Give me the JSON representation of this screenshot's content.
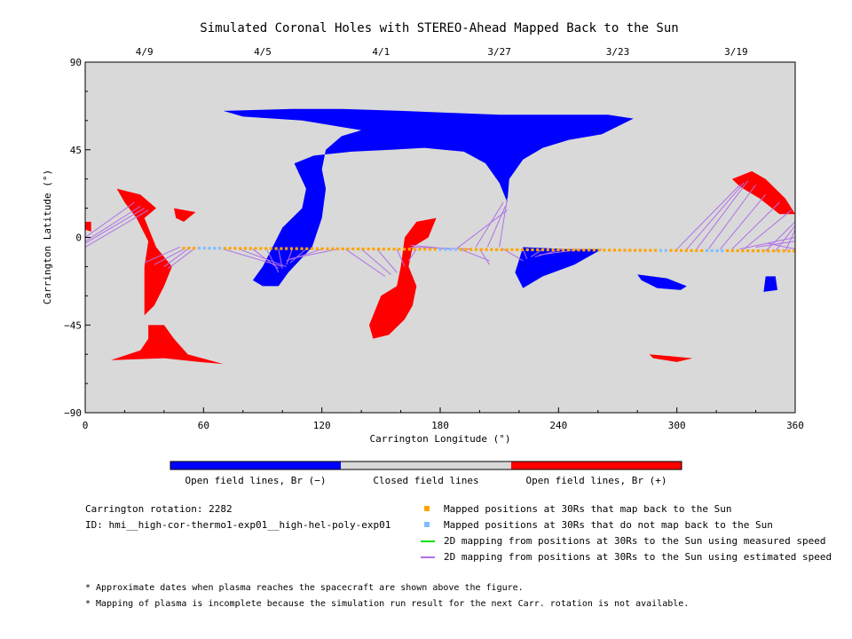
{
  "chart_data": {
    "type": "scatter",
    "title": "Simulated Coronal Holes with STEREO-Ahead Mapped Back to the Sun",
    "xlabel": "Carrington Longitude (°)",
    "ylabel": "Carrington Latitude (°)",
    "xlim": [
      0,
      360
    ],
    "ylim": [
      -90,
      90
    ],
    "xticks": [
      0,
      60,
      120,
      180,
      240,
      300,
      360
    ],
    "yticks": [
      90,
      45,
      0,
      -45,
      -90
    ],
    "top_axis_dates": [
      {
        "label": "4/9",
        "lon": 30
      },
      {
        "label": "4/5",
        "lon": 90
      },
      {
        "label": "4/1",
        "lon": 150
      },
      {
        "label": "3/27",
        "lon": 210
      },
      {
        "label": "3/23",
        "lon": 270
      },
      {
        "label": "3/19",
        "lon": 330
      }
    ],
    "background_color": "#d9d9d9",
    "colorbar": [
      {
        "label": "Open field lines, Br (−)",
        "color": "#0000ff"
      },
      {
        "label": "Closed field lines",
        "color": "#d9d9d9"
      },
      {
        "label": "Open field lines, Br (+)",
        "color": "#ff0000"
      }
    ],
    "negative_holes": [
      [
        [
          70,
          65
        ],
        [
          105,
          66
        ],
        [
          130,
          66
        ],
        [
          160,
          65
        ],
        [
          185,
          64
        ],
        [
          210,
          63
        ],
        [
          240,
          63
        ],
        [
          265,
          63
        ],
        [
          278,
          61
        ],
        [
          262,
          53
        ],
        [
          245,
          50
        ],
        [
          232,
          46
        ],
        [
          222,
          40
        ],
        [
          215,
          30
        ],
        [
          214,
          18
        ],
        [
          210,
          28
        ],
        [
          203,
          38
        ],
        [
          192,
          44
        ],
        [
          172,
          46
        ],
        [
          155,
          45
        ],
        [
          135,
          44
        ],
        [
          116,
          42
        ],
        [
          106,
          38
        ],
        [
          112,
          25
        ],
        [
          110,
          15
        ],
        [
          100,
          5
        ],
        [
          95,
          -5
        ],
        [
          90,
          -15
        ],
        [
          85,
          -22
        ],
        [
          90,
          -25
        ],
        [
          98,
          -25
        ],
        [
          103,
          -18
        ],
        [
          115,
          -5
        ],
        [
          120,
          10
        ],
        [
          122,
          25
        ],
        [
          120,
          35
        ],
        [
          122,
          45
        ],
        [
          130,
          52
        ],
        [
          140,
          55
        ],
        [
          110,
          60
        ],
        [
          80,
          62
        ]
      ],
      [
        [
          222,
          -5
        ],
        [
          245,
          -6
        ],
        [
          262,
          -6
        ],
        [
          248,
          -14
        ],
        [
          232,
          -20
        ],
        [
          222,
          -26
        ],
        [
          218,
          -18
        ]
      ],
      [
        [
          280,
          -19
        ],
        [
          295,
          -21
        ],
        [
          305,
          -25
        ],
        [
          302,
          -27
        ],
        [
          290,
          -26
        ],
        [
          282,
          -22
        ]
      ],
      [
        [
          345,
          -20
        ],
        [
          350,
          -20
        ],
        [
          351,
          -27
        ],
        [
          344,
          -28
        ]
      ]
    ],
    "positive_holes": [
      [
        [
          16,
          25
        ],
        [
          28,
          22
        ],
        [
          36,
          15
        ],
        [
          30,
          10
        ],
        [
          36,
          -5
        ],
        [
          44,
          -15
        ],
        [
          40,
          -25
        ],
        [
          35,
          -35
        ],
        [
          30,
          -40
        ],
        [
          30,
          -15
        ],
        [
          32,
          -2
        ],
        [
          26,
          10
        ],
        [
          20,
          18
        ]
      ],
      [
        [
          45,
          15
        ],
        [
          56,
          13
        ],
        [
          50,
          8
        ],
        [
          46,
          10
        ]
      ],
      [
        [
          0,
          8
        ],
        [
          3,
          8
        ],
        [
          3,
          3
        ],
        [
          0,
          4
        ]
      ],
      [
        [
          13,
          -63
        ],
        [
          40,
          -62
        ],
        [
          58,
          -64
        ],
        [
          70,
          -65
        ],
        [
          52,
          -60
        ],
        [
          45,
          -52
        ],
        [
          40,
          -45
        ],
        [
          32,
          -45
        ],
        [
          32,
          -52
        ],
        [
          28,
          -58
        ]
      ],
      [
        [
          168,
          8
        ],
        [
          178,
          10
        ],
        [
          174,
          0
        ],
        [
          166,
          -5
        ],
        [
          164,
          -15
        ],
        [
          168,
          -25
        ],
        [
          166,
          -35
        ],
        [
          162,
          -42
        ],
        [
          154,
          -50
        ],
        [
          146,
          -52
        ],
        [
          144,
          -45
        ],
        [
          150,
          -30
        ],
        [
          158,
          -25
        ],
        [
          160,
          -15
        ],
        [
          162,
          0
        ]
      ],
      [
        [
          286,
          -60
        ],
        [
          308,
          -62
        ],
        [
          300,
          -64
        ],
        [
          288,
          -62
        ]
      ],
      [
        [
          328,
          30
        ],
        [
          338,
          34
        ],
        [
          345,
          30
        ],
        [
          355,
          20
        ],
        [
          360,
          12
        ],
        [
          352,
          12
        ],
        [
          342,
          20
        ],
        [
          332,
          26
        ]
      ]
    ],
    "mapped_back": {
      "lat_start": -5.5,
      "lat_end": -7.0,
      "lon_start": 50,
      "lon_end": 360,
      "step": 2.6,
      "no_map_ranges": [
        [
          56,
          70
        ],
        [
          178,
          190
        ],
        [
          290,
          296
        ],
        [
          314,
          324
        ]
      ],
      "color_maps": "#ffa500",
      "color_no_map": "#7fbfff"
    },
    "mapping_lines": {
      "color": "#b070e8",
      "lines": [
        [
          [
            0,
            0
          ],
          [
            25,
            18
          ]
        ],
        [
          [
            0,
            -2
          ],
          [
            28,
            16
          ]
        ],
        [
          [
            0,
            -3
          ],
          [
            30,
            15
          ]
        ],
        [
          [
            0,
            -5
          ],
          [
            32,
            14
          ]
        ],
        [
          [
            30,
            -13
          ],
          [
            48,
            -5
          ]
        ],
        [
          [
            35,
            -14
          ],
          [
            50,
            -6
          ]
        ],
        [
          [
            40,
            -15
          ],
          [
            52,
            -6
          ]
        ],
        [
          [
            42,
            -16
          ],
          [
            55,
            -6
          ]
        ],
        [
          [
            100,
            -15
          ],
          [
            70,
            -6
          ]
        ],
        [
          [
            102,
            -15
          ],
          [
            78,
            -6
          ]
        ],
        [
          [
            98,
            -16
          ],
          [
            85,
            -6
          ]
        ],
        [
          [
            98,
            -18
          ],
          [
            92,
            -6
          ]
        ],
        [
          [
            100,
            -16
          ],
          [
            98,
            -6
          ]
        ],
        [
          [
            102,
            -14
          ],
          [
            105,
            -6
          ]
        ],
        [
          [
            104,
            -13
          ],
          [
            112,
            -6
          ]
        ],
        [
          [
            102,
            -12
          ],
          [
            120,
            -6
          ]
        ],
        [
          [
            104,
            -11
          ],
          [
            128,
            -6
          ]
        ],
        [
          [
            152,
            -20
          ],
          [
            132,
            -6
          ]
        ],
        [
          [
            155,
            -19
          ],
          [
            140,
            -6
          ]
        ],
        [
          [
            158,
            -18
          ],
          [
            148,
            -6
          ]
        ],
        [
          [
            162,
            -15
          ],
          [
            158,
            -6
          ]
        ],
        [
          [
            164,
            -12
          ],
          [
            168,
            -6
          ]
        ],
        [
          [
            165,
            -4
          ],
          [
            185,
            -6
          ]
        ],
        [
          [
            165,
            -5
          ],
          [
            196,
            -6
          ]
        ],
        [
          [
            198,
            -5
          ],
          [
            212,
            18
          ]
        ],
        [
          [
            204,
            -5
          ],
          [
            213,
            16
          ]
        ],
        [
          [
            210,
            -5
          ],
          [
            214,
            20
          ]
        ],
        [
          [
            188,
            -6
          ],
          [
            214,
            14
          ]
        ],
        [
          [
            205,
            -12
          ],
          [
            190,
            -6
          ]
        ],
        [
          [
            205,
            -14
          ],
          [
            200,
            -6
          ]
        ],
        [
          [
            222,
            -12
          ],
          [
            212,
            -6
          ]
        ],
        [
          [
            224,
            -11
          ],
          [
            222,
            -6
          ]
        ],
        [
          [
            226,
            -10
          ],
          [
            232,
            -6
          ]
        ],
        [
          [
            228,
            -10
          ],
          [
            242,
            -6
          ]
        ],
        [
          [
            230,
            -9
          ],
          [
            252,
            -6
          ]
        ],
        [
          [
            300,
            -6
          ],
          [
            332,
            27
          ]
        ],
        [
          [
            305,
            -6
          ],
          [
            334,
            28
          ]
        ],
        [
          [
            310,
            -6
          ],
          [
            336,
            29
          ]
        ],
        [
          [
            316,
            -6
          ],
          [
            340,
            27
          ]
        ],
        [
          [
            322,
            -6
          ],
          [
            345,
            22
          ]
        ],
        [
          [
            328,
            -6
          ],
          [
            352,
            18
          ]
        ],
        [
          [
            334,
            -6
          ],
          [
            358,
            14
          ]
        ],
        [
          [
            345,
            -7
          ],
          [
            360,
            8
          ]
        ],
        [
          [
            350,
            -7
          ],
          [
            360,
            6
          ]
        ],
        [
          [
            355,
            -7
          ],
          [
            360,
            4
          ]
        ],
        [
          [
            360,
            -6
          ],
          [
            346,
            -3
          ]
        ],
        [
          [
            360,
            -2
          ],
          [
            340,
            -5
          ]
        ],
        [
          [
            360,
            0
          ],
          [
            332,
            -6
          ]
        ]
      ]
    }
  },
  "legend": {
    "items": [
      {
        "label": "Mapped positions at 30Rs that map back to the Sun",
        "color": "#ffa500",
        "kind": "square"
      },
      {
        "label": "Mapped positions at 30Rs that do not map back to the Sun",
        "color": "#7fbfff",
        "kind": "square"
      },
      {
        "label": "2D mapping from positions at 30Rs to the Sun using measured speed",
        "color": "#00e000",
        "kind": "line"
      },
      {
        "label": "2D mapping from positions at 30Rs to the Sun using estimated speed",
        "color": "#b070e8",
        "kind": "line"
      }
    ]
  },
  "info": {
    "rotation": "Carrington rotation: 2282",
    "id": "ID: hmi__high-cor-thermo1-exp01__high-hel-poly-exp01"
  },
  "footnotes": [
    "* Approximate dates when plasma reaches the spacecraft are shown above the figure.",
    "* Mapping of plasma is incomplete because the simulation run result for the next Carr. rotation is not available."
  ]
}
